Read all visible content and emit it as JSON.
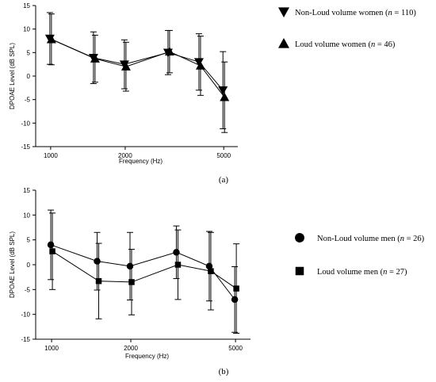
{
  "chart_data": [
    {
      "type": "line",
      "panel_label": "(a)",
      "xlabel": "Frequency (Hz)",
      "ylabel": "DPOAE Level (dB SPL)",
      "x_scale": "log",
      "x_ticks": [
        1000,
        2000,
        5000
      ],
      "x_tick_labels": [
        "1000",
        "2000",
        "5000"
      ],
      "xlim": [
        870,
        5700
      ],
      "y_ticks": [
        -15,
        -10,
        -5,
        0,
        5,
        10,
        15
      ],
      "y_tick_labels": [
        "-15",
        "-10",
        "-5",
        "0",
        "5",
        "10",
        "15"
      ],
      "ylim": [
        -15,
        15
      ],
      "legend_position": "right",
      "x": [
        1000,
        1500,
        2000,
        3000,
        4000,
        5000
      ],
      "series": [
        {
          "name": "Non-Loud volume women",
          "n": "110",
          "marker": "triangle-down",
          "values": [
            8.0,
            3.9,
            2.5,
            5.0,
            3.0,
            -3.0
          ],
          "error": [
            5.5,
            5.5,
            5.2,
            4.7,
            6.0,
            8.2
          ]
        },
        {
          "name": "Loud volume women",
          "n": "46",
          "marker": "triangle-up",
          "values": [
            7.8,
            3.7,
            2.0,
            5.2,
            2.2,
            -4.5
          ],
          "error": [
            5.4,
            5.0,
            5.2,
            4.5,
            6.3,
            7.5
          ]
        }
      ]
    },
    {
      "type": "line",
      "panel_label": "(b)",
      "xlabel": "Frequency (Hz)",
      "ylabel": "DPOAE Level (dB SPL)",
      "x_scale": "log",
      "x_ticks": [
        1000,
        2000,
        5000
      ],
      "x_tick_labels": [
        "1000",
        "2000",
        "5000"
      ],
      "xlim": [
        870,
        5700
      ],
      "y_ticks": [
        -15,
        -10,
        -5,
        0,
        5,
        10,
        15
      ],
      "y_tick_labels": [
        "-15",
        "-10",
        "-5",
        "0",
        "5",
        "10",
        "15"
      ],
      "ylim": [
        -15,
        15
      ],
      "legend_position": "right",
      "x": [
        1000,
        1500,
        2000,
        3000,
        4000,
        5000
      ],
      "series": [
        {
          "name": "Non-Loud volume men",
          "n": "26",
          "marker": "circle",
          "values": [
            4.0,
            0.7,
            -0.3,
            2.5,
            -0.3,
            -7.0
          ],
          "error": [
            7.0,
            5.8,
            6.8,
            5.3,
            7.0,
            6.6
          ]
        },
        {
          "name": "Loud volume men",
          "n": "27",
          "marker": "square",
          "values": [
            2.7,
            -3.3,
            -3.5,
            0.0,
            -1.3,
            -4.8
          ],
          "error": [
            7.7,
            7.6,
            6.6,
            7.0,
            7.8,
            9.0
          ]
        }
      ]
    }
  ]
}
